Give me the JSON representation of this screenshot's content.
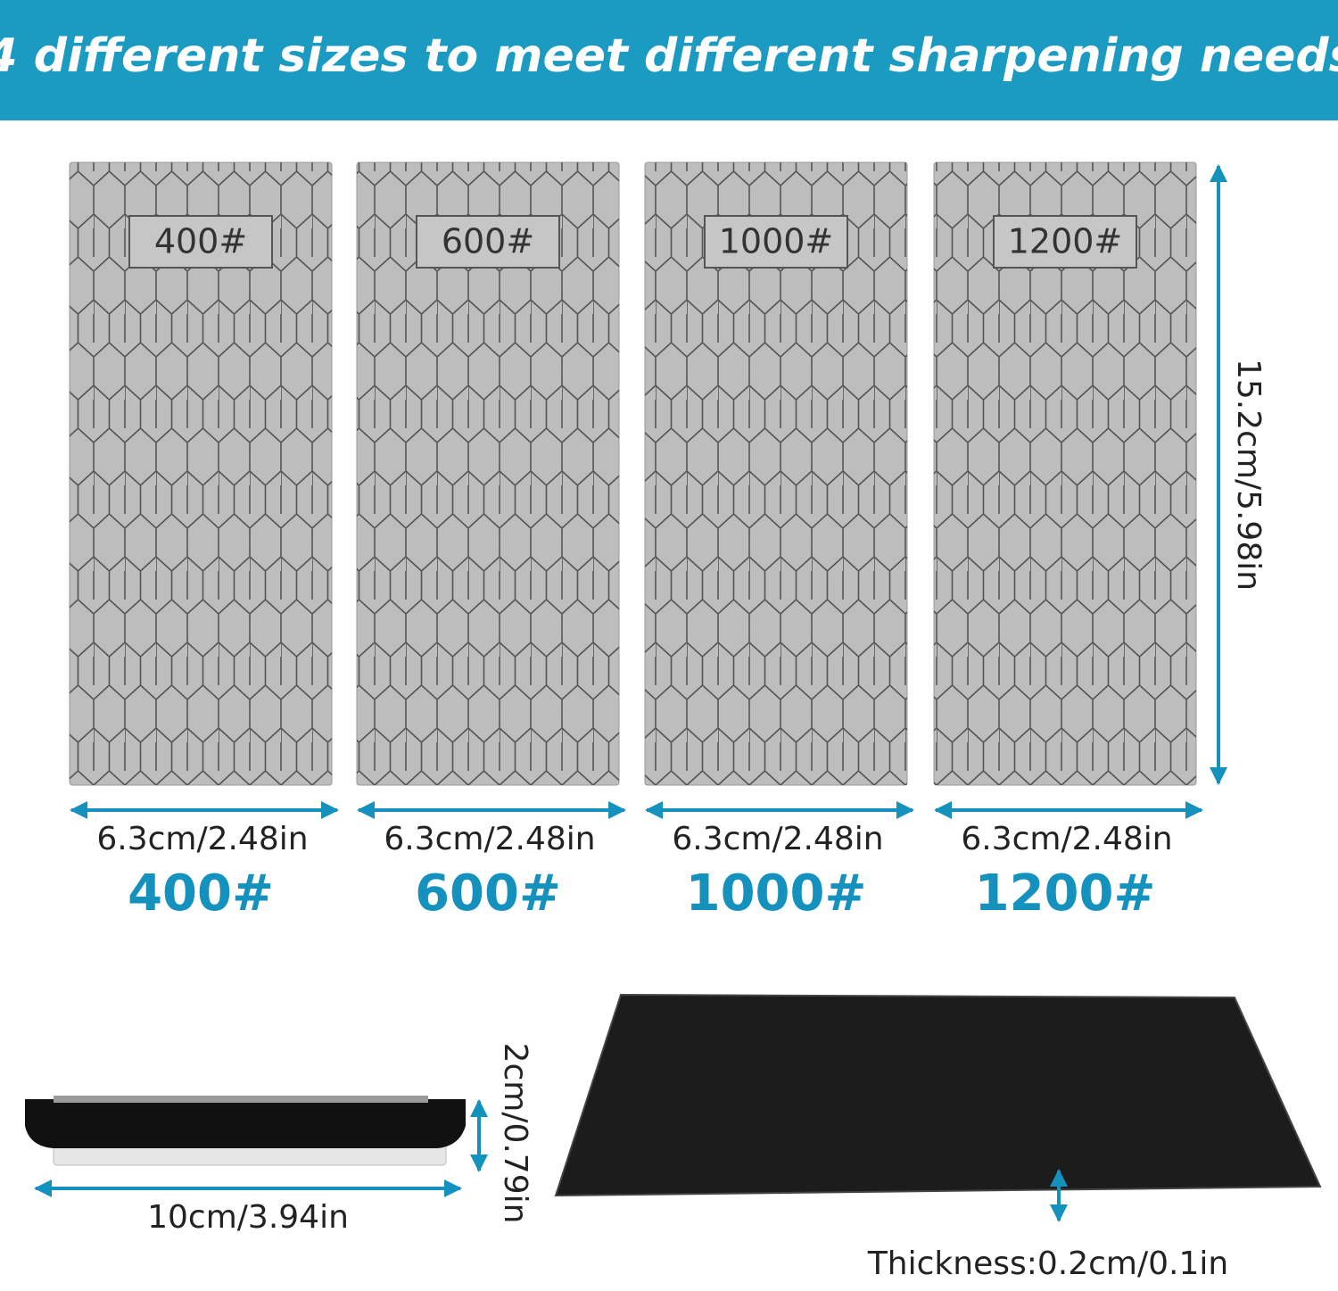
{
  "header": {
    "title": "4 different sizes to meet different sharpening needs"
  },
  "plates": [
    {
      "grit": "400#",
      "width": "6.3cm/2.48in"
    },
    {
      "grit": "600#",
      "width": "6.3cm/2.48in"
    },
    {
      "grit": "1000#",
      "width": "6.3cm/2.48in"
    },
    {
      "grit": "1200#",
      "width": "6.3cm/2.48in"
    }
  ],
  "plate_height": "15.2cm/5.98in",
  "holder": {
    "height": "2cm/0.79in",
    "length": "10cm/3.94in"
  },
  "pad": {
    "thickness": "Thickness:0.2cm/0.1in"
  }
}
